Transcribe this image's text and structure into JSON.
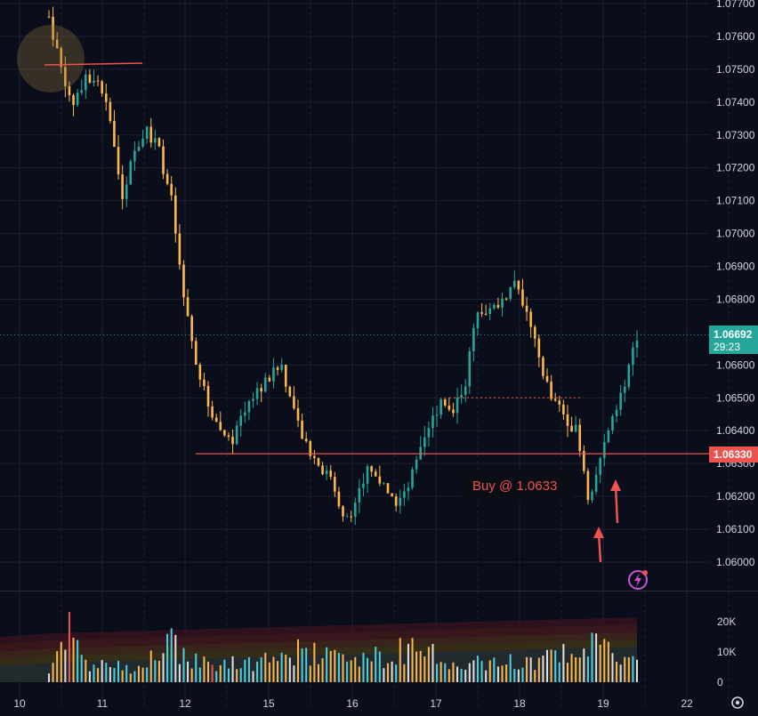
{
  "chart_data": {
    "type": "candlestick",
    "price_axis": {
      "ticks": [
        "1.07700",
        "1.07600",
        "1.07500",
        "1.07400",
        "1.07300",
        "1.07200",
        "1.07100",
        "1.07000",
        "1.06900",
        "1.06800",
        "1.06600",
        "1.06500",
        "1.06400",
        "1.06300",
        "1.06200",
        "1.06100",
        "1.06000"
      ],
      "ylim": [
        1.0596,
        1.0771
      ]
    },
    "volume_axis": {
      "ticks": [
        "20K",
        "10K",
        "0"
      ],
      "ylim": [
        0,
        26000
      ]
    },
    "time_axis": {
      "ticks": [
        "10",
        "11",
        "12",
        "15",
        "16",
        "17",
        "18",
        "19",
        "22"
      ]
    },
    "current_price": {
      "value": "1.06692",
      "countdown": "29:23",
      "level": 1.06692,
      "color": "#26a69a"
    },
    "level_line": {
      "value": "1.06330",
      "level": 1.0633,
      "color": "#ef5350"
    },
    "dotted_level": {
      "level": 1.065,
      "color": "#ef5350"
    },
    "annotation": {
      "text": "Buy @ 1.0633"
    },
    "close_path": [
      [
        0,
        1.0766
      ],
      [
        3,
        1.075
      ],
      [
        6,
        1.074
      ],
      [
        9,
        1.0748
      ],
      [
        12,
        1.0745
      ],
      [
        15,
        1.0735
      ],
      [
        18,
        1.0712
      ],
      [
        21,
        1.0725
      ],
      [
        24,
        1.0732
      ],
      [
        27,
        1.0725
      ],
      [
        30,
        1.071
      ],
      [
        33,
        1.068
      ],
      [
        36,
        1.066
      ],
      [
        39,
        1.0648
      ],
      [
        42,
        1.064
      ],
      [
        45,
        1.0637
      ],
      [
        48,
        1.0647
      ],
      [
        51,
        1.0652
      ],
      [
        54,
        1.0656
      ],
      [
        57,
        1.066
      ],
      [
        60,
        1.0645
      ],
      [
        63,
        1.0635
      ],
      [
        66,
        1.063
      ],
      [
        69,
        1.0625
      ],
      [
        72,
        1.0613
      ],
      [
        75,
        1.0617
      ],
      [
        78,
        1.0628
      ],
      [
        81,
        1.0625
      ],
      [
        84,
        1.0618
      ],
      [
        87,
        1.062
      ],
      [
        90,
        1.063
      ],
      [
        93,
        1.064
      ],
      [
        96,
        1.065
      ],
      [
        99,
        1.0647
      ],
      [
        102,
        1.0655
      ],
      [
        105,
        1.0678
      ],
      [
        108,
        1.0676
      ],
      [
        111,
        1.068
      ],
      [
        114,
        1.0685
      ],
      [
        117,
        1.0675
      ],
      [
        120,
        1.0662
      ],
      [
        123,
        1.065
      ],
      [
        126,
        1.0645
      ],
      [
        129,
        1.064
      ],
      [
        132,
        1.062
      ],
      [
        135,
        1.063
      ],
      [
        138,
        1.0645
      ],
      [
        141,
        1.0655
      ],
      [
        144,
        1.0669
      ]
    ],
    "volume_path": [
      [
        0,
        4000
      ],
      [
        5,
        21000
      ],
      [
        8,
        7000
      ],
      [
        20,
        5000
      ],
      [
        30,
        13000
      ],
      [
        35,
        7000
      ],
      [
        50,
        6000
      ],
      [
        60,
        11000
      ],
      [
        75,
        7000
      ],
      [
        85,
        10000
      ],
      [
        90,
        14000
      ],
      [
        100,
        6000
      ],
      [
        115,
        7000
      ],
      [
        125,
        9000
      ],
      [
        133,
        12000
      ],
      [
        138,
        10000
      ],
      [
        144,
        6000
      ]
    ],
    "color_up": "#26a69a",
    "color_down": "#ffb74d",
    "color_spike": "#ef5350",
    "grid": true
  },
  "widgets": {
    "zoom_button_icon": "lightning-icon",
    "settings_icon": "gear-icon"
  }
}
